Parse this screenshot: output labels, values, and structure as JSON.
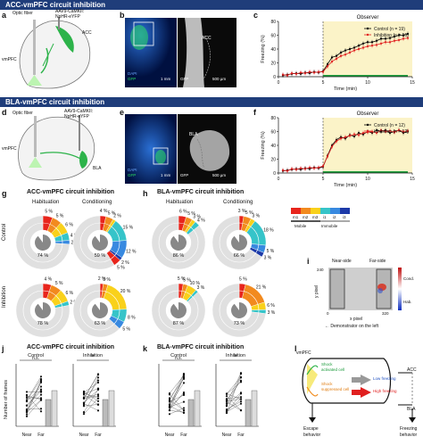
{
  "banners": {
    "acc": "ACC-vmPFC circuit inhibition",
    "bla": "BLA-vmPFC circuit inhibition"
  },
  "panel_labels": [
    "a",
    "b",
    "c",
    "d",
    "e",
    "f",
    "g",
    "h",
    "i",
    "j",
    "k",
    "l"
  ],
  "panel_a": {
    "fiber": "Optic fiber",
    "virus": "AAV9-CaMKII:\nNpHR-eYFP",
    "virus1": "AAV9-CaMKII:",
    "virus2": "NpHR-eYFP",
    "region": "ACC",
    "target": "vmPFC"
  },
  "panel_b": {
    "region": "ACC",
    "dapi": "DAPI",
    "gfp": "GFP",
    "gfp2": "GFP",
    "scale1": "1 mm",
    "scale2": "500 µm"
  },
  "panel_d": {
    "fiber": "Optic fiber",
    "virus1": "AAV9-CaMKII:",
    "virus2": "NpHR-eYFP",
    "region": "BLA",
    "target": "vmPFC"
  },
  "panel_e": {
    "region": "BLA",
    "dapi": "DAPI",
    "gfp": "GFP",
    "gfp2": "GFP",
    "scale1": "1 mm",
    "scale2": "500 µm"
  },
  "panel_c": {
    "header": "Observer",
    "ylabel": "Freezing (%)",
    "xlabel": "Time (min)",
    "legend": [
      "Control (n = 19)",
      "Inhibition (n = 16)"
    ]
  },
  "panel_f": {
    "header": "Observer",
    "ylabel": "Freezing (%)",
    "xlabel": "Time (min)",
    "legend": [
      "Control (n = 12)",
      "Inhibition (n = 12)"
    ]
  },
  "panel_g": {
    "title": "ACC-vmPFC circuit inhibition",
    "col1": "Habituation",
    "col2": "Conditioning",
    "row1": "Control",
    "row2": "Inhibition"
  },
  "panel_h": {
    "title": "BLA-vmPFC circuit inhibition",
    "col1": "Habituation",
    "col2": "Conditioning"
  },
  "legend_gh": {
    "mobile": "Mobile",
    "immobile": "Immobile",
    "labels": [
      "m1",
      "m2",
      "m3",
      "i1",
      "i2",
      "i3"
    ]
  },
  "panel_i": {
    "near": "Near-side",
    "far": "Far-side",
    "ytick": "240",
    "xtick0": "0",
    "xtick1": "320",
    "ylabel": "y pixel",
    "xlabel": "x pixel",
    "demo": "← Demonstrator on the left",
    "cbar_top": "Cond.",
    "cbar_bot": "Hab."
  },
  "panel_j": {
    "title": "ACC-vmPFC circuit inhibition",
    "sub1": "Control",
    "sub2": "Inhibition",
    "ns": "n.s.",
    "star": "*",
    "ylabel": "Number of frames",
    "x1": "Near",
    "x2": "Far"
  },
  "panel_k": {
    "title": "BLA-vmPFC circuit inhibition",
    "sub1": "Control",
    "sub2": "Inhibition",
    "ns": "n.s.",
    "star": "*",
    "x1": "Near",
    "x2": "Far"
  },
  "panel_l": {
    "vmpfc": "vmPFC",
    "acc": "ACC",
    "bla": "BLA",
    "shock_act1": "Shock",
    "shock_act2": "activated cell",
    "shock_sup1": "Shock",
    "shock_sup2": "suppressed cell",
    "low": "Low freezing",
    "high": "High freezing",
    "escape1": "Escape",
    "escape2": "behavior",
    "freeze1": "Freezing",
    "freeze2": "behavior"
  },
  "colors": {
    "banner": "#1f3d7a",
    "control": "#000000",
    "inhibition": "#e02020",
    "shade": "#fbf3c8",
    "green_bar": "#22a040"
  },
  "chart_data": [
    {
      "type": "line",
      "panel": "c",
      "ylabel": "Freezing (%)",
      "xlabel": "Time (min)",
      "ylim": [
        0,
        80
      ],
      "xlim": [
        0,
        15
      ],
      "yticks": [
        0,
        20,
        40,
        60,
        80
      ],
      "xticks": [
        0,
        5,
        10,
        15
      ],
      "x": [
        0.5,
        1,
        1.5,
        2,
        2.5,
        3,
        3.5,
        4,
        4.5,
        5,
        5.5,
        6,
        6.5,
        7,
        7.5,
        8,
        8.5,
        9,
        9.5,
        10,
        10.5,
        11,
        11.5,
        12,
        12.5,
        13,
        13.5,
        14,
        14.5
      ],
      "series": [
        {
          "name": "Control (n = 19)",
          "values": [
            2,
            3,
            4,
            5,
            4,
            6,
            5,
            7,
            6,
            8,
            18,
            28,
            30,
            35,
            38,
            40,
            42,
            45,
            48,
            50,
            50,
            52,
            55,
            55,
            56,
            58,
            60,
            60,
            62
          ]
        },
        {
          "name": "Inhibition (n = 16)",
          "values": [
            3,
            2,
            5,
            4,
            6,
            5,
            7,
            6,
            7,
            7,
            15,
            22,
            26,
            30,
            32,
            35,
            38,
            40,
            42,
            44,
            45,
            46,
            48,
            50,
            50,
            52,
            53,
            55,
            56
          ]
        }
      ]
    },
    {
      "type": "line",
      "panel": "f",
      "ylabel": "Freezing (%)",
      "xlabel": "Time (min)",
      "ylim": [
        0,
        80
      ],
      "xlim": [
        0,
        15
      ],
      "yticks": [
        0,
        20,
        40,
        60,
        80
      ],
      "xticks": [
        0,
        5,
        10,
        15
      ],
      "x": [
        0.5,
        1,
        1.5,
        2,
        2.5,
        3,
        3.5,
        4,
        4.5,
        5,
        5.5,
        6,
        6.5,
        7,
        7.5,
        8,
        8.5,
        9,
        9.5,
        10,
        10.5,
        11,
        11.5,
        12,
        12.5,
        13,
        13.5,
        14,
        14.5
      ],
      "series": [
        {
          "name": "Control (n = 12)",
          "values": [
            3,
            4,
            5,
            6,
            5,
            7,
            6,
            8,
            7,
            9,
            25,
            40,
            48,
            52,
            50,
            55,
            53,
            58,
            56,
            60,
            58,
            62,
            60,
            62,
            58,
            60,
            62,
            58,
            60
          ]
        },
        {
          "name": "Inhibition (n = 12)",
          "values": [
            4,
            3,
            6,
            5,
            7,
            6,
            8,
            7,
            8,
            10,
            24,
            38,
            46,
            50,
            52,
            54,
            56,
            55,
            58,
            59,
            60,
            58,
            62,
            60,
            61,
            59,
            62,
            60,
            61
          ]
        }
      ]
    },
    {
      "type": "pie",
      "panel": "g-control-habituation",
      "center_label": "74 %",
      "slices_labels": [
        "5 %",
        "5 %",
        "6 %",
        "4 %",
        "2 %"
      ]
    },
    {
      "type": "pie",
      "panel": "g-control-conditioning",
      "center_label": "59 %",
      "slices_labels": [
        "4 %",
        "5 %",
        "2 %",
        "15 %",
        "12 %",
        "2 %",
        "5 %"
      ]
    },
    {
      "type": "pie",
      "panel": "g-inhibition-habituation",
      "center_label": "78 %",
      "slices_labels": [
        "4 %",
        "5 %",
        "6 %",
        "2 %"
      ]
    },
    {
      "type": "pie",
      "panel": "g-inhibition-conditioning",
      "center_label": "63 %",
      "slices_labels": [
        "2 %",
        "3 %",
        "20 %",
        "8 %",
        "5 %"
      ]
    },
    {
      "type": "pie",
      "panel": "h-control-habituation",
      "center_label": "86 %",
      "slices_labels": [
        "6 %",
        "5 %",
        "3 %",
        "4 %"
      ]
    },
    {
      "type": "pie",
      "panel": "h-control-conditioning",
      "center_label": "66 %",
      "slices_labels": [
        "3 %",
        "5 %",
        "3 %",
        "18 %",
        "5 %",
        "3 %"
      ]
    },
    {
      "type": "pie",
      "panel": "h-inhibition-habituation",
      "center_label": "87 %",
      "slices_labels": [
        "5 %",
        "5 %",
        "10 %",
        "3 %"
      ]
    },
    {
      "type": "pie",
      "panel": "h-inhibition-conditioning",
      "center_label": "73 %",
      "slices_labels": [
        "5 %",
        "21 %",
        "6 %",
        "3 %"
      ]
    },
    {
      "type": "scatter",
      "panel": "j",
      "groups": [
        "Control-Near",
        "Control-Far",
        "Inhibition-Near",
        "Inhibition-Far"
      ]
    },
    {
      "type": "scatter",
      "panel": "k",
      "groups": [
        "Control-Near",
        "Control-Far",
        "Inhibition-Near",
        "Inhibition-Far"
      ]
    }
  ]
}
